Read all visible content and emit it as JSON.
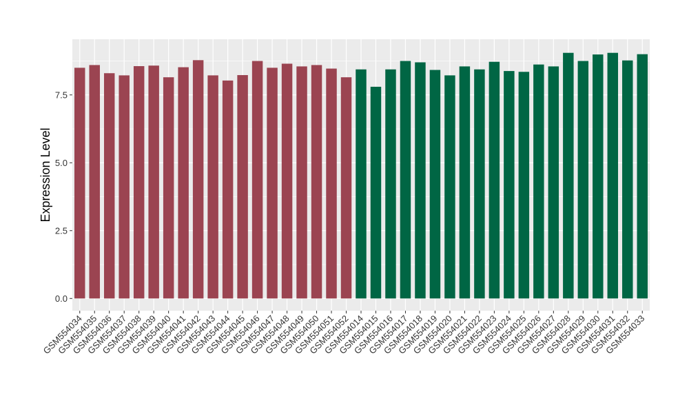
{
  "chart_data": {
    "type": "bar",
    "xlabel": "",
    "ylabel": "Expression Level",
    "ylim": [
      -0.45,
      9.55
    ],
    "yticks": [
      "0.0",
      "2.5",
      "5.0",
      "7.5"
    ],
    "ytick_values": [
      0,
      2.5,
      5.0,
      7.5
    ],
    "grid": true,
    "legend": "none",
    "categories": [
      "GSM554034",
      "GSM554035",
      "GSM554036",
      "GSM554037",
      "GSM554038",
      "GSM554039",
      "GSM554040",
      "GSM554041",
      "GSM554042",
      "GSM554043",
      "GSM554044",
      "GSM554045",
      "GSM554046",
      "GSM554047",
      "GSM554048",
      "GSM554049",
      "GSM554050",
      "GSM554051",
      "GSM554052",
      "GSM554014",
      "GSM554015",
      "GSM554016",
      "GSM554017",
      "GSM554018",
      "GSM554019",
      "GSM554020",
      "GSM554021",
      "GSM554022",
      "GSM554023",
      "GSM554024",
      "GSM554025",
      "GSM554026",
      "GSM554027",
      "GSM554028",
      "GSM554029",
      "GSM554030",
      "GSM554031",
      "GSM554032",
      "GSM554033"
    ],
    "values": [
      8.5,
      8.6,
      8.3,
      8.22,
      8.56,
      8.58,
      8.15,
      8.52,
      8.78,
      8.22,
      8.03,
      8.23,
      8.75,
      8.5,
      8.65,
      8.55,
      8.6,
      8.47,
      8.15,
      8.44,
      7.8,
      8.44,
      8.75,
      8.7,
      8.42,
      8.22,
      8.55,
      8.44,
      8.72,
      8.38,
      8.35,
      8.62,
      8.55,
      9.05,
      8.75,
      8.99,
      9.05,
      8.77,
      9.0
    ],
    "groups": [
      {
        "color": "#9b4451",
        "count": 19
      },
      {
        "color": "#006644",
        "count": 20
      }
    ],
    "panel_background": "#ebebeb",
    "grid_color": "#ffffff"
  }
}
